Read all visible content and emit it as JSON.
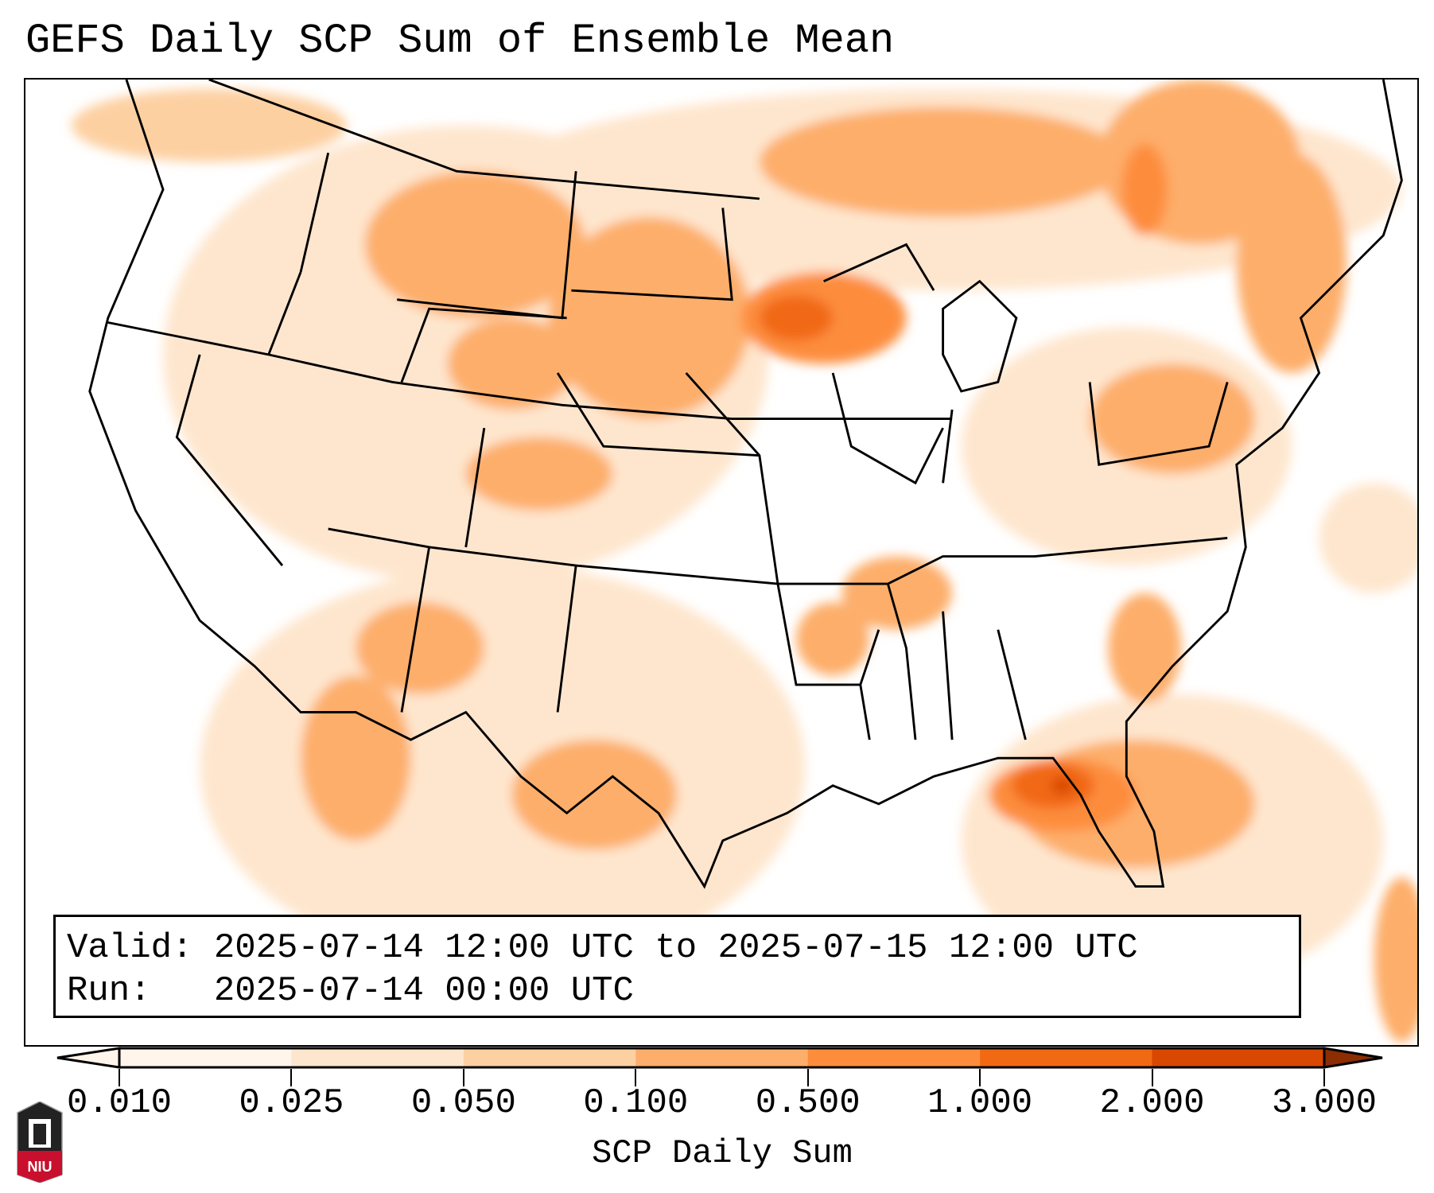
{
  "title": "GEFS Daily SCP Sum of Ensemble Mean",
  "info": {
    "valid_label": "Valid:",
    "valid_value": "2025-07-14 12:00 UTC to 2025-07-15 12:00 UTC",
    "run_label": "Run:",
    "run_value": "2025-07-14 00:00 UTC"
  },
  "colorbar": {
    "label": "SCP Daily Sum",
    "ticks": [
      "0.010",
      "0.025",
      "0.050",
      "0.100",
      "0.500",
      "1.000",
      "2.000",
      "3.000"
    ],
    "colors": [
      "#fff5eb",
      "#fee6ce",
      "#fdd0a2",
      "#fdae6b",
      "#fd8d3c",
      "#f16913",
      "#d94801",
      "#8c2d04"
    ],
    "extend": "both"
  },
  "logo": {
    "text": "NIU"
  }
}
